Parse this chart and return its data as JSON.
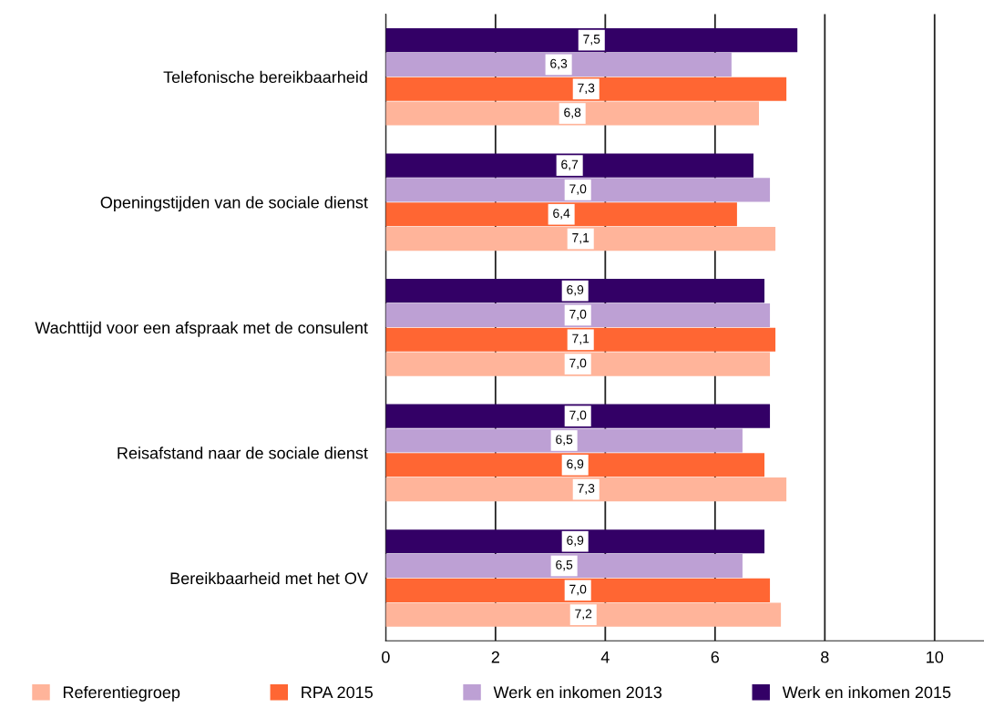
{
  "chart_data": {
    "type": "bar",
    "orientation": "horizontal",
    "categories": [
      "Telefonische bereikbaarheid",
      "Openingstijden van de sociale dienst",
      "Wachttijd voor een afspraak met de consulent",
      "Reisafstand naar de sociale dienst",
      "Bereikbaarheid met het OV"
    ],
    "series": [
      {
        "name": "Referentiegroep",
        "color": "#ffb49a",
        "values": [
          6.8,
          7.1,
          7.0,
          7.3,
          7.2
        ],
        "value_labels": [
          "6,8",
          "7,1",
          "7,0",
          "7,3",
          "7,2"
        ]
      },
      {
        "name": "RPA 2015",
        "color": "#ff6633",
        "values": [
          7.3,
          6.4,
          7.1,
          6.9,
          7.0
        ],
        "value_labels": [
          "7,3",
          "6,4",
          "7,1",
          "6,9",
          "7,0"
        ]
      },
      {
        "name": "Werk en inkomen 2013",
        "color": "#bda0d4",
        "values": [
          6.3,
          7.0,
          7.0,
          6.5,
          6.5
        ],
        "value_labels": [
          "6,3",
          "7,0",
          "7,0",
          "6,5",
          "6,5"
        ]
      },
      {
        "name": "Werk en inkomen 2015",
        "color": "#330066",
        "values": [
          7.5,
          6.7,
          6.9,
          7.0,
          6.9
        ],
        "value_labels": [
          "7,5",
          "6,7",
          "6,9",
          "7,0",
          "6,9"
        ]
      }
    ],
    "xlim": [
      0,
      10.9
    ],
    "xticks": [
      0,
      2,
      4,
      6,
      8,
      10
    ],
    "grid": "x",
    "legend": "bottom"
  }
}
